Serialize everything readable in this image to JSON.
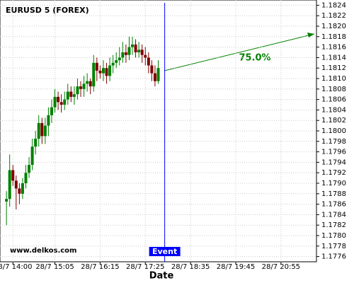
{
  "chart_data": {
    "type": "candlestick",
    "title": "EURUSD 5 (FOREX)",
    "watermark": "www.delkos.com",
    "x_label": "Date",
    "x": [
      "28/7 13:50",
      "28/7 13:55",
      "28/7 14:00",
      "28/7 14:05",
      "28/7 14:10",
      "28/7 14:15",
      "28/7 14:20",
      "28/7 14:25",
      "28/7 14:30",
      "28/7 14:35",
      "28/7 14:40",
      "28/7 14:45",
      "28/7 14:50",
      "28/7 14:55",
      "28/7 15:00",
      "28/7 15:05",
      "28/7 15:10",
      "28/7 15:15",
      "28/7 15:20",
      "28/7 15:25",
      "28/7 15:30",
      "28/7 15:35",
      "28/7 15:40",
      "28/7 15:45",
      "28/7 15:50",
      "28/7 15:55",
      "28/7 16:00",
      "28/7 16:05",
      "28/7 16:10",
      "28/7 16:15",
      "28/7 16:20",
      "28/7 16:25",
      "28/7 16:30",
      "28/7 16:35",
      "28/7 16:40",
      "28/7 16:45",
      "28/7 16:50",
      "28/7 16:55",
      "28/7 17:00",
      "28/7 17:05",
      "28/7 17:10",
      "28/7 17:15",
      "28/7 17:20",
      "28/7 17:25",
      "28/7 17:30",
      "28/7 17:35",
      "28/7 17:40",
      "28/7 17:45"
    ],
    "open": [
      1.17865,
      1.1787,
      1.17925,
      1.17905,
      1.1789,
      1.1788,
      1.179,
      1.1792,
      1.17935,
      1.1797,
      1.17985,
      1.18015,
      1.1799,
      1.1801,
      1.1803,
      1.18045,
      1.18065,
      1.18055,
      1.1805,
      1.1806,
      1.18075,
      1.18065,
      1.1807,
      1.18085,
      1.1808,
      1.1809,
      1.18095,
      1.18085,
      1.1813,
      1.18115,
      1.1811,
      1.1812,
      1.18105,
      1.18125,
      1.1813,
      1.18135,
      1.1814,
      1.1815,
      1.18145,
      1.1816,
      1.18165,
      1.1815,
      1.18155,
      1.18145,
      1.1814,
      1.18125,
      1.1811,
      1.18095
    ],
    "high": [
      1.17885,
      1.17955,
      1.17935,
      1.17915,
      1.179,
      1.1791,
      1.17935,
      1.1795,
      1.17985,
      1.18,
      1.1803,
      1.18025,
      1.18025,
      1.18045,
      1.1806,
      1.1808,
      1.18075,
      1.1807,
      1.18075,
      1.1809,
      1.18085,
      1.18085,
      1.181,
      1.18095,
      1.18105,
      1.1811,
      1.181,
      1.18145,
      1.1814,
      1.18125,
      1.18135,
      1.1813,
      1.1814,
      1.18145,
      1.1815,
      1.1816,
      1.1817,
      1.18165,
      1.1818,
      1.1818,
      1.18175,
      1.1817,
      1.18165,
      1.1816,
      1.1815,
      1.18135,
      1.18125,
      1.18135
    ],
    "low": [
      1.1782,
      1.17855,
      1.17895,
      1.1785,
      1.1786,
      1.1787,
      1.1789,
      1.1791,
      1.17925,
      1.17955,
      1.1797,
      1.17975,
      1.17975,
      1.1799,
      1.18015,
      1.18035,
      1.1804,
      1.18035,
      1.1804,
      1.1805,
      1.18055,
      1.1805,
      1.1806,
      1.18065,
      1.18065,
      1.18075,
      1.1807,
      1.18075,
      1.18095,
      1.181,
      1.18095,
      1.1809,
      1.18095,
      1.1811,
      1.1812,
      1.18125,
      1.1813,
      1.1813,
      1.18135,
      1.18145,
      1.1814,
      1.1814,
      1.1813,
      1.18125,
      1.1811,
      1.18095,
      1.18085,
      1.1809
    ],
    "close": [
      1.1787,
      1.17925,
      1.17905,
      1.1789,
      1.1788,
      1.179,
      1.1792,
      1.17935,
      1.1797,
      1.17985,
      1.18015,
      1.1799,
      1.1801,
      1.1803,
      1.18045,
      1.18065,
      1.18055,
      1.1805,
      1.1806,
      1.18075,
      1.18065,
      1.1807,
      1.18085,
      1.1808,
      1.1809,
      1.18095,
      1.18085,
      1.1813,
      1.18115,
      1.1811,
      1.1812,
      1.18105,
      1.18125,
      1.1813,
      1.18135,
      1.1814,
      1.1815,
      1.18145,
      1.1816,
      1.18165,
      1.1815,
      1.18155,
      1.18145,
      1.1814,
      1.18125,
      1.1811,
      1.18095,
      1.1812
    ],
    "up_color": "#008000",
    "down_color": "#800000",
    "xlim": [
      "28/7 13:40",
      "28/7 21:50"
    ],
    "xticks": [
      "28/7 14:00",
      "28/7 15:05",
      "28/7 16:15",
      "28/7 17:25",
      "28/7 18:35",
      "28/7 19:45",
      "28/7 20:55"
    ],
    "ylim": [
      1.1775,
      1.1825
    ],
    "yticks": [
      1.1776,
      1.1778,
      {
        "value": 1.178,
        "label": "1.1780"
      },
      1.1782,
      1.1784,
      1.1786,
      1.1788,
      {
        "value": 1.179,
        "label": "1.1790"
      },
      1.1792,
      1.1794,
      1.1796,
      1.1798,
      {
        "value": 1.18,
        "label": "1.1800"
      },
      1.1802,
      1.1804,
      1.1806,
      1.1808,
      {
        "value": 1.181,
        "label": "1.1810"
      },
      1.1812,
      1.1814,
      1.1816,
      1.1818,
      {
        "value": 1.182,
        "label": "1.1820"
      },
      1.1822,
      1.1824
    ],
    "grid": true,
    "event": {
      "label": "Event",
      "x": "28/7 17:55",
      "color": "#0000ff"
    },
    "projection": {
      "label": "75.0%",
      "color": "#008000"
    }
  }
}
